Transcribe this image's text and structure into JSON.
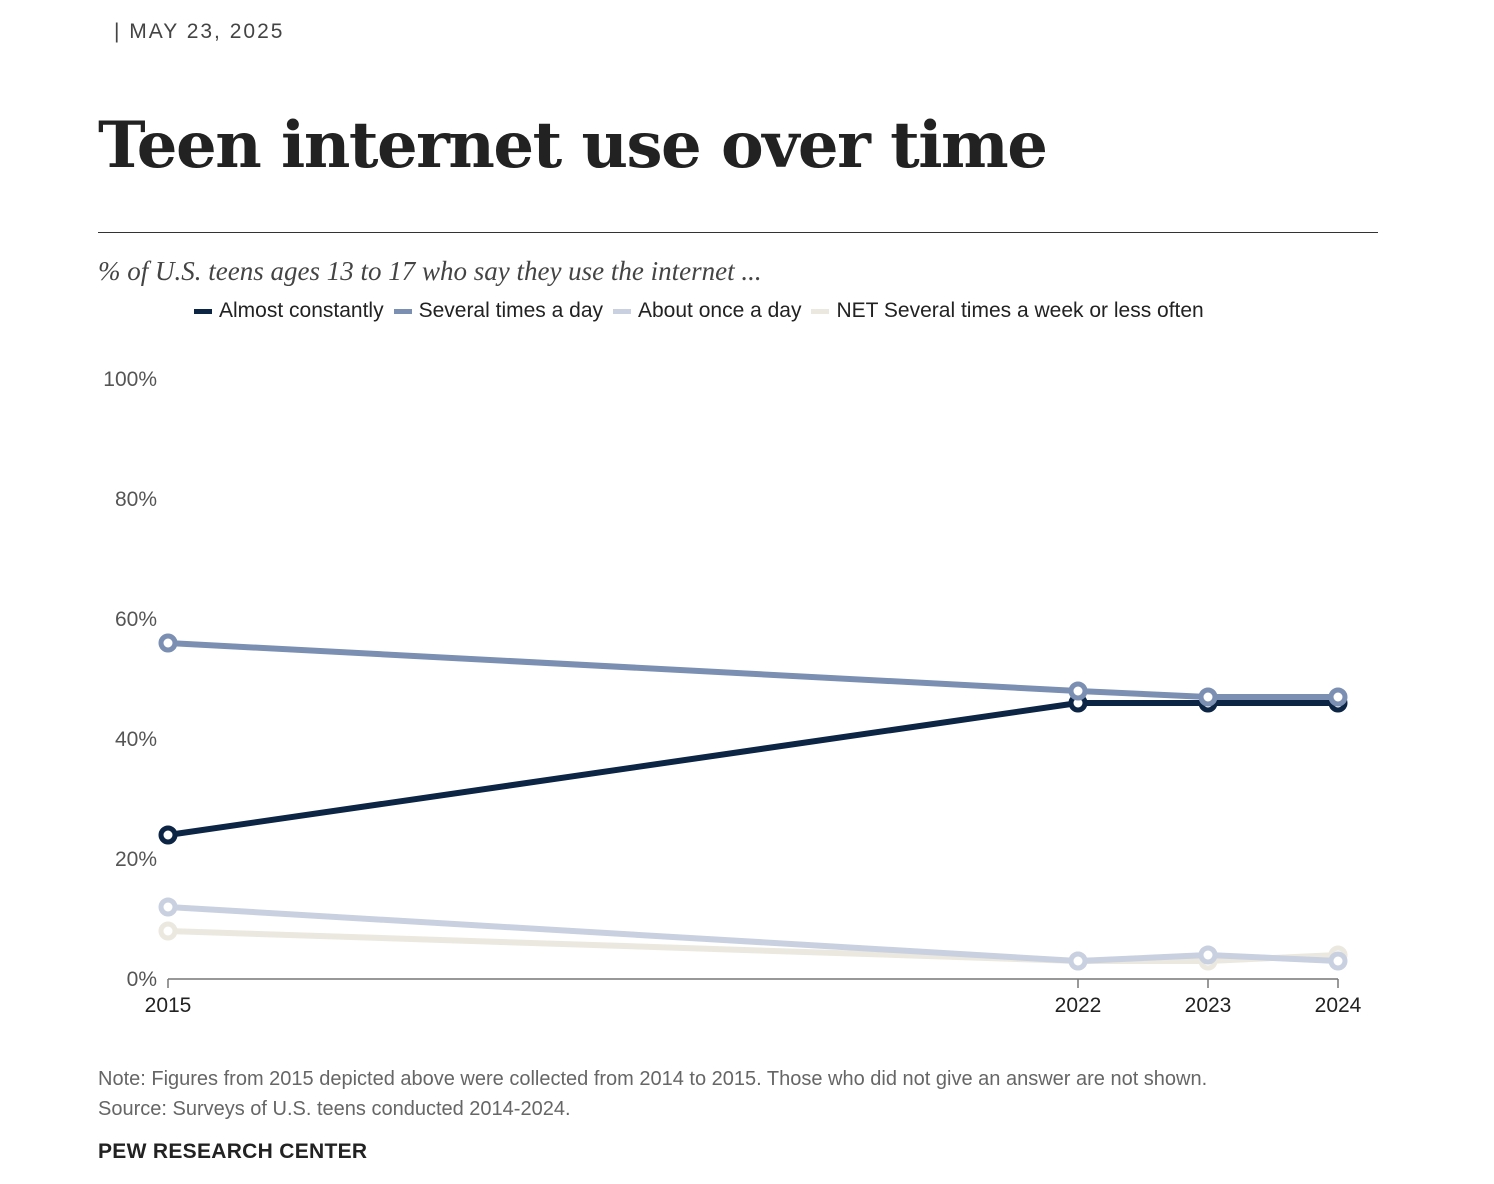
{
  "header": {
    "date": "|  MAY 23, 2025"
  },
  "colors": {
    "almost_constantly": "#0c2545",
    "several_times_a_day": "#7b8fb2",
    "about_once_a_day": "#c9d0e0",
    "net_weekly_or_less": "#ebe8df"
  },
  "chart_data": {
    "type": "line",
    "title": "Teen internet use over time",
    "subtitle": "% of U.S. teens ages 13 to 17 who say they use the internet ...",
    "x": [
      2015,
      2022,
      2023,
      2024
    ],
    "x_tick_labels": [
      "2015",
      "2022",
      "2023",
      "2024"
    ],
    "ylim": [
      0,
      100
    ],
    "y_ticks": [
      0,
      20,
      40,
      60,
      80,
      100
    ],
    "y_tick_labels": [
      "0%",
      "20%",
      "40%",
      "60%",
      "80%",
      "100%"
    ],
    "grid": false,
    "legend_position": "top",
    "series": [
      {
        "name": "Almost constantly",
        "color_key": "almost_constantly",
        "values": [
          24,
          46,
          46,
          46
        ]
      },
      {
        "name": "Several times a day",
        "color_key": "several_times_a_day",
        "values": [
          56,
          48,
          47,
          47
        ]
      },
      {
        "name": "About once a day",
        "color_key": "about_once_a_day",
        "values": [
          12,
          3,
          4,
          3
        ]
      },
      {
        "name": "NET Several times a week or less often",
        "color_key": "net_weekly_or_less",
        "values": [
          8,
          3,
          3,
          4
        ]
      }
    ]
  },
  "footer": {
    "note": "Note: Figures from 2015 depicted above were collected from 2014 to 2015. Those who did not give an answer are not shown.",
    "source": "Source: Surveys of U.S. teens conducted 2014-2024.",
    "brand": "PEW RESEARCH CENTER"
  }
}
